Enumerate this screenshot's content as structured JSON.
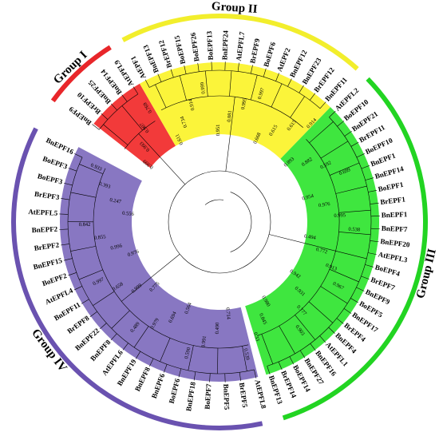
{
  "figure": {
    "groups": [
      {
        "id": "I",
        "label": "Group I",
        "color": "#e8262a",
        "fill": "#f23a3a",
        "leaves": [
          "BnEPF9",
          "BrEPF10",
          "BnEPF25",
          "BnEPF14",
          "AtEPFL9"
        ]
      },
      {
        "id": "II",
        "label": "Group II",
        "color": "#f2ee2c",
        "fill": "#fbf43a",
        "leaves": [
          "AtEPF1",
          "BnEPF13",
          "BrEPF12",
          "BoEPF15",
          "BoEPF26",
          "BoEPF13",
          "BnEPF24",
          "AtEPFL7",
          "BrEPF9",
          "BoEPF6",
          "AtEPF2",
          "BnEPF12",
          "BnEPF23",
          "BrEPF12",
          "BnEPF11"
        ]
      },
      {
        "id": "III",
        "label": "Group III",
        "color": "#22d422",
        "fill": "#3fe63f",
        "leaves": [
          "AtEPFL2",
          "BoEPF10",
          "BnEPF21",
          "BrEPF11",
          "BoEPF10",
          "BnEPF1",
          "BnEPF14",
          "BoEPF1",
          "BrEPF1",
          "BnEPF1",
          "BnEPF7",
          "BnEPF20",
          "AtEPFL3",
          "BoEPF4",
          "BrEPF7",
          "BnEPF9",
          "BoEPF5",
          "BnEPF17",
          "BrEPF4",
          "BnEPF4",
          "AtEPFL1",
          "BnEPF16",
          "BnEPF27",
          "BoEPF14",
          "BrEPF14",
          "BnEPF13"
        ]
      },
      {
        "id": "IV",
        "label": "Group IV",
        "color": "#6a52b0",
        "fill": "#8877c2",
        "leaves": [
          "AtEPFL8",
          "BrEPF5",
          "BnEPF5",
          "BoEPF7",
          "BnEPF18",
          "BoEPF6",
          "BnEPF6",
          "BnEPF8",
          "BnEPF19",
          "AtEPFL6",
          "BnEPF8",
          "BnEPF22",
          "BrEPF8",
          "BnEPF11",
          "AtEPFL4",
          "BoEPF2",
          "BnEPF15",
          "BrEPF2",
          "BnEPF2",
          "AtEPFL5",
          "BrEPF3",
          "BoEPF3",
          "BoEPF3",
          "BnEPF16"
        ]
      }
    ],
    "bootstrap": [
      "0.999",
      "0.993",
      "0.907",
      "0.769",
      "0.611",
      "0.734",
      "0.914",
      "0.999",
      "0.951",
      "0.881",
      "0.995",
      "0.997",
      "0.668",
      "0.615",
      "0.615",
      "0.914",
      "0.893",
      "0.882",
      "0.592",
      "0.699",
      "0.954",
      "0.976",
      "0.995",
      "0.538",
      "0.494",
      "0.772",
      "0.913",
      "0.967",
      "0.942",
      "0.931",
      "0.777",
      "0.903",
      "0.980",
      "0.845",
      "0.33",
      "0.539",
      "0.714",
      "0.490",
      "0.991",
      "0.590",
      "0.564",
      "0.694",
      "0.979",
      "0.489",
      "0.775",
      "0.999",
      "0.658",
      "0.997",
      "0.976",
      "0.996",
      "0.855",
      "0.842",
      "0.556",
      "0.247",
      "0.393",
      "0.933"
    ]
  }
}
